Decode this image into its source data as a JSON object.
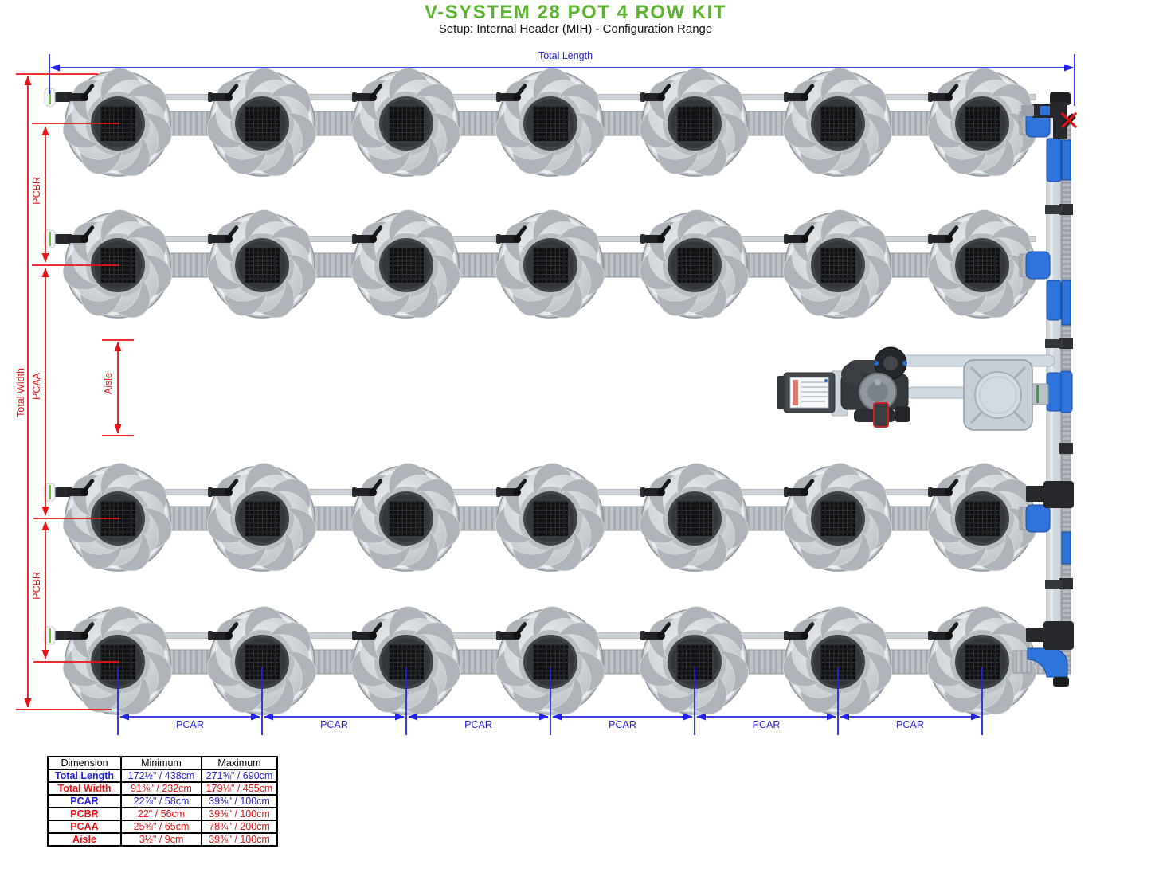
{
  "title": "V-SYSTEM 28 POT 4 ROW KIT",
  "subtitle": "Setup: Internal Header (MIH) - Configuration Range",
  "diagram": {
    "pot_rows": 4,
    "pots_per_row": 7,
    "total_pots": 28,
    "labels": {
      "total_length": "Total Length",
      "total_width": "Total Width",
      "pcbr": "PCBR",
      "pcaa": "PCAA",
      "aisle": "Aisle",
      "pcar": "PCAR"
    },
    "colors": {
      "title_green": "#5cb431",
      "dimension_blue": "#2323e8",
      "dimension_red": "#ee1212",
      "fitting_blue": "#2e74dc"
    }
  },
  "table": {
    "headers": [
      "Dimension",
      "Minimum",
      "Maximum"
    ],
    "rows": [
      {
        "dimension": "Total Length",
        "minimum": "172½\" / 438cm",
        "maximum": "271⅝\" / 690cm",
        "color": "blue"
      },
      {
        "dimension": "Total Width",
        "minimum": "91⅜\" / 232cm",
        "maximum": "179⅛\" / 455cm",
        "color": "red"
      },
      {
        "dimension": "PCAR",
        "minimum": "22⅞\" / 58cm",
        "maximum": "39⅜\" / 100cm",
        "color": "blue"
      },
      {
        "dimension": "PCBR",
        "minimum": "22\" / 56cm",
        "maximum": "39⅜\" / 100cm",
        "color": "red"
      },
      {
        "dimension": "PCAA",
        "minimum": "25⅝\" / 65cm",
        "maximum": "78¾\" / 200cm",
        "color": "red"
      },
      {
        "dimension": "Aisle",
        "minimum": "3½\" / 9cm",
        "maximum": "39⅜\" / 100cm",
        "color": "red"
      }
    ]
  }
}
